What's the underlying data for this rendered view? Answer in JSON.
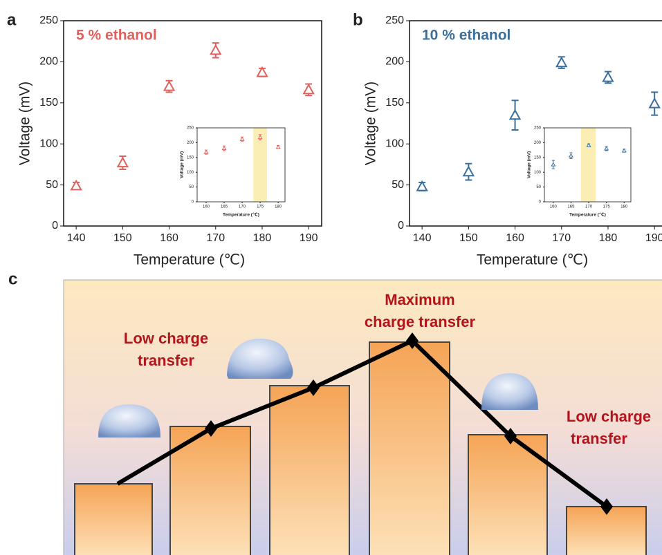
{
  "chart_data": [
    {
      "type": "scatter",
      "panel_label": "a",
      "annotation": "5 % ethanol",
      "xlabel": "Temperature (℃)",
      "ylabel": "Voltage (mV)",
      "x": [
        140,
        150,
        160,
        170,
        180,
        190
      ],
      "values": [
        49,
        77,
        170,
        214,
        187,
        166
      ],
      "errors": [
        4,
        8,
        7,
        9,
        5,
        7
      ],
      "color": "#e0605c",
      "xlim": [
        137.3,
        192.8
      ],
      "xticks": [
        140,
        150,
        160,
        170,
        180,
        190
      ],
      "ylim": [
        0,
        250
      ],
      "yticks": [
        0,
        50,
        100,
        150,
        200,
        250
      ],
      "inset": {
        "type": "scatter",
        "xlabel": "Temperature (℃)",
        "ylabel": "Voltage (mV)",
        "x": [
          160,
          165,
          170,
          175,
          180
        ],
        "values": [
          168,
          181,
          212,
          218,
          185
        ],
        "errors": [
          7,
          8,
          7,
          9,
          5
        ],
        "xlim": [
          157.5,
          181.9
        ],
        "xticks": [
          160,
          165,
          170,
          175,
          180
        ],
        "ylim": [
          0,
          250
        ],
        "yticks": [
          0,
          50,
          100,
          150,
          200,
          250
        ],
        "highlight": [
          173.1,
          176.9
        ],
        "highlight_color": "#fbeeb4"
      }
    },
    {
      "type": "scatter",
      "panel_label": "b",
      "annotation": "10 % ethanol",
      "xlabel": "Temperature (℃)",
      "ylabel": "Voltage (mV)",
      "x": [
        140,
        150,
        160,
        170,
        180,
        190
      ],
      "values": [
        48,
        66,
        135,
        199,
        181,
        149
      ],
      "errors": [
        5,
        10,
        18,
        7,
        7,
        14
      ],
      "color": "#3a6f9c",
      "xlim": [
        137.3,
        192.8
      ],
      "xticks": [
        140,
        150,
        160,
        170,
        180,
        190
      ],
      "ylim": [
        0,
        250
      ],
      "yticks": [
        0,
        50,
        100,
        150,
        200,
        250
      ],
      "inset": {
        "type": "scatter",
        "xlabel": "Temperature (℃)",
        "ylabel": "Voltage (mV)",
        "x": [
          160,
          165,
          170,
          175,
          180
        ],
        "values": [
          126,
          156,
          191,
          180,
          173
        ],
        "errors": [
          14,
          10,
          5,
          7,
          5
        ],
        "xlim": [
          157.5,
          181.9
        ],
        "xticks": [
          160,
          165,
          170,
          175,
          180
        ],
        "ylim": [
          0,
          250
        ],
        "yticks": [
          0,
          50,
          100,
          150,
          200,
          250
        ],
        "highlight": [
          167.8,
          172.0
        ],
        "highlight_color": "#fbeeb4"
      }
    }
  ],
  "diagram": {
    "panel_label": "c",
    "left_label": [
      "Low charge",
      "transfer"
    ],
    "peak_label": [
      "Maximum",
      "charge transfer"
    ],
    "right_label": [
      "Low charge",
      "transfer"
    ]
  }
}
